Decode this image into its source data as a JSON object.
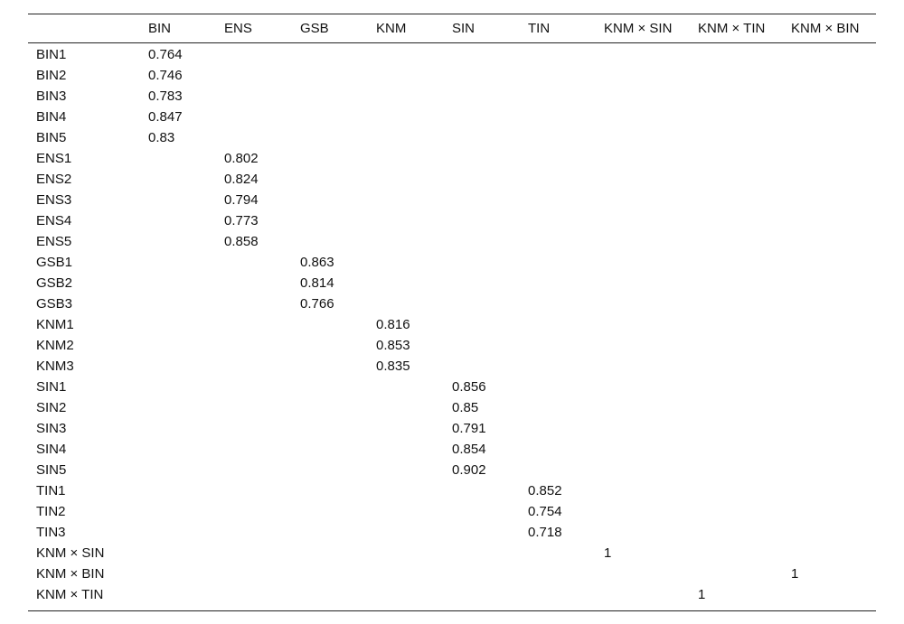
{
  "table": {
    "columns": [
      "BIN",
      "ENS",
      "GSB",
      "KNM",
      "SIN",
      "TIN",
      "KNM × SIN",
      "KNM × TIN",
      "KNM × BIN"
    ],
    "rows": [
      [
        "BIN1",
        0.764,
        null,
        null,
        null,
        null,
        null,
        null,
        null,
        null
      ],
      [
        "BIN2",
        0.746,
        null,
        null,
        null,
        null,
        null,
        null,
        null,
        null
      ],
      [
        "BIN3",
        0.783,
        null,
        null,
        null,
        null,
        null,
        null,
        null,
        null
      ],
      [
        "BIN4",
        0.847,
        null,
        null,
        null,
        null,
        null,
        null,
        null,
        null
      ],
      [
        "BIN5",
        0.83,
        null,
        null,
        null,
        null,
        null,
        null,
        null,
        null
      ],
      [
        "ENS1",
        null,
        0.802,
        null,
        null,
        null,
        null,
        null,
        null,
        null
      ],
      [
        "ENS2",
        null,
        0.824,
        null,
        null,
        null,
        null,
        null,
        null,
        null
      ],
      [
        "ENS3",
        null,
        0.794,
        null,
        null,
        null,
        null,
        null,
        null,
        null
      ],
      [
        "ENS4",
        null,
        0.773,
        null,
        null,
        null,
        null,
        null,
        null,
        null
      ],
      [
        "ENS5",
        null,
        0.858,
        null,
        null,
        null,
        null,
        null,
        null,
        null
      ],
      [
        "GSB1",
        null,
        null,
        0.863,
        null,
        null,
        null,
        null,
        null,
        null
      ],
      [
        "GSB2",
        null,
        null,
        0.814,
        null,
        null,
        null,
        null,
        null,
        null
      ],
      [
        "GSB3",
        null,
        null,
        0.766,
        null,
        null,
        null,
        null,
        null,
        null
      ],
      [
        "KNM1",
        null,
        null,
        null,
        0.816,
        null,
        null,
        null,
        null,
        null
      ],
      [
        "KNM2",
        null,
        null,
        null,
        0.853,
        null,
        null,
        null,
        null,
        null
      ],
      [
        "KNM3",
        null,
        null,
        null,
        0.835,
        null,
        null,
        null,
        null,
        null
      ],
      [
        "SIN1",
        null,
        null,
        null,
        null,
        0.856,
        null,
        null,
        null,
        null
      ],
      [
        "SIN2",
        null,
        null,
        null,
        null,
        0.85,
        null,
        null,
        null,
        null
      ],
      [
        "SIN3",
        null,
        null,
        null,
        null,
        0.791,
        null,
        null,
        null,
        null
      ],
      [
        "SIN4",
        null,
        null,
        null,
        null,
        0.854,
        null,
        null,
        null,
        null
      ],
      [
        "SIN5",
        null,
        null,
        null,
        null,
        0.902,
        null,
        null,
        null,
        null
      ],
      [
        "TIN1",
        null,
        null,
        null,
        null,
        null,
        0.852,
        null,
        null,
        null
      ],
      [
        "TIN2",
        null,
        null,
        null,
        null,
        null,
        0.754,
        null,
        null,
        null
      ],
      [
        "TIN3",
        null,
        null,
        null,
        null,
        null,
        0.718,
        null,
        null,
        null
      ],
      [
        "KNM × SIN",
        null,
        null,
        null,
        null,
        null,
        null,
        1,
        null,
        null
      ],
      [
        "KNM × BIN",
        null,
        null,
        null,
        null,
        null,
        null,
        null,
        null,
        1
      ],
      [
        "KNM × TIN",
        null,
        null,
        null,
        null,
        null,
        null,
        null,
        1,
        null
      ]
    ]
  }
}
